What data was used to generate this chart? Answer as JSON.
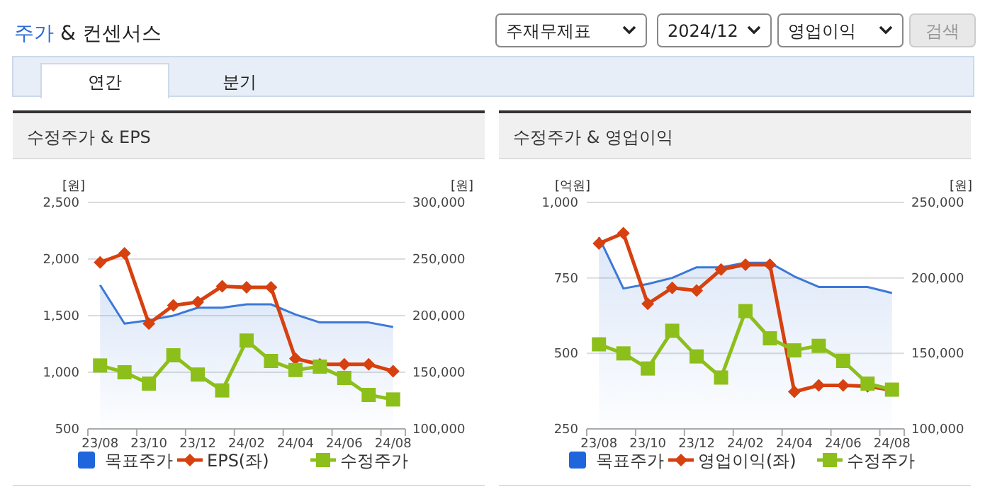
{
  "chart_data": [
    {
      "type": "other",
      "title": "주가 & 컨센서스",
      "annotations": [
        "주재무제표",
        "2024/12",
        "영업이익",
        "검색",
        "연간",
        "분기"
      ]
    },
    {
      "type": "line",
      "title": "수정주가 & EPS",
      "ylabel": "[원]",
      "y2label": "[원]",
      "categories": [
        "23/08",
        null,
        "23/10",
        null,
        "23/12",
        null,
        "24/02",
        null,
        "24/04",
        null,
        "24/06",
        null,
        "24/08"
      ],
      "series": [
        {
          "name": "목표주가",
          "type": "area",
          "axis": "y2",
          "color": "#3c78d8",
          "marker": "none",
          "values": [
            227000,
            193000,
            196000,
            200000,
            207000,
            207000,
            210000,
            210000,
            201000,
            194000,
            194000,
            194000,
            190000
          ]
        },
        {
          "name": "EPS(좌)",
          "type": "line",
          "color": "#d7400f",
          "marker": "diamond",
          "values": [
            1970,
            2050,
            1430,
            1590,
            1620,
            1760,
            1750,
            1750,
            1120,
            1070,
            1070,
            1070,
            1010
          ]
        },
        {
          "name": "수정주가",
          "type": "line",
          "axis": "y2",
          "color": "#8cbf1a",
          "marker": "square",
          "values": [
            156000,
            150000,
            140000,
            165000,
            148000,
            134000,
            178000,
            160000,
            152000,
            155000,
            145000,
            130000,
            126000
          ]
        }
      ],
      "ylim": [
        500,
        2500
      ],
      "yticks": [
        {
          "value": 500,
          "label": "500"
        },
        {
          "value": 1000,
          "label": "1,000"
        },
        {
          "value": 1500,
          "label": "1,500"
        },
        {
          "value": 2000,
          "label": "2,000"
        },
        {
          "value": 2500,
          "label": "2,500"
        }
      ],
      "y2lim": [
        100000,
        300000
      ],
      "y2ticks": [
        {
          "value": 100000,
          "label": "100,000"
        },
        {
          "value": 150000,
          "label": "150,000"
        },
        {
          "value": 200000,
          "label": "200,000"
        },
        {
          "value": 250000,
          "label": "250,000"
        },
        {
          "value": 300000,
          "label": "300,000"
        }
      ],
      "grid": "y",
      "legend": "bottom"
    },
    {
      "type": "line",
      "title": "수정주가 & 영업이익",
      "ylabel": "[억원]",
      "y2label": "[원]",
      "categories": [
        "23/08",
        null,
        "23/10",
        null,
        "23/12",
        null,
        "24/02",
        null,
        "24/04",
        null,
        "24/06",
        null,
        "24/08"
      ],
      "series": [
        {
          "name": "목표주가",
          "type": "area",
          "axis": "y2",
          "color": "#3c78d8",
          "marker": "none",
          "values": [
            227000,
            193000,
            196000,
            200000,
            207000,
            207000,
            210000,
            210000,
            201000,
            194000,
            194000,
            194000,
            190000
          ]
        },
        {
          "name": "영업이익(좌)",
          "type": "line",
          "color": "#d7400f",
          "marker": "diamond",
          "values": [
            864,
            898,
            664,
            717,
            708,
            778,
            794,
            794,
            373,
            394,
            394,
            391,
            378
          ]
        },
        {
          "name": "수정주가",
          "type": "line",
          "axis": "y2",
          "color": "#8cbf1a",
          "marker": "square",
          "values": [
            156000,
            150000,
            140000,
            165000,
            148000,
            134000,
            178000,
            160000,
            152000,
            155000,
            145000,
            130000,
            126000
          ]
        }
      ],
      "ylim": [
        250,
        1000
      ],
      "yticks": [
        {
          "value": 250,
          "label": "250"
        },
        {
          "value": 500,
          "label": "500"
        },
        {
          "value": 750,
          "label": "750"
        },
        {
          "value": 1000,
          "label": "1,000"
        }
      ],
      "y2lim": [
        100000,
        250000
      ],
      "y2ticks": [
        {
          "value": 100000,
          "label": "100,000"
        },
        {
          "value": 150000,
          "label": "150,000"
        },
        {
          "value": 200000,
          "label": "200,000"
        },
        {
          "value": 250000,
          "label": "250,000"
        }
      ],
      "grid": "y",
      "legend": "bottom"
    }
  ]
}
